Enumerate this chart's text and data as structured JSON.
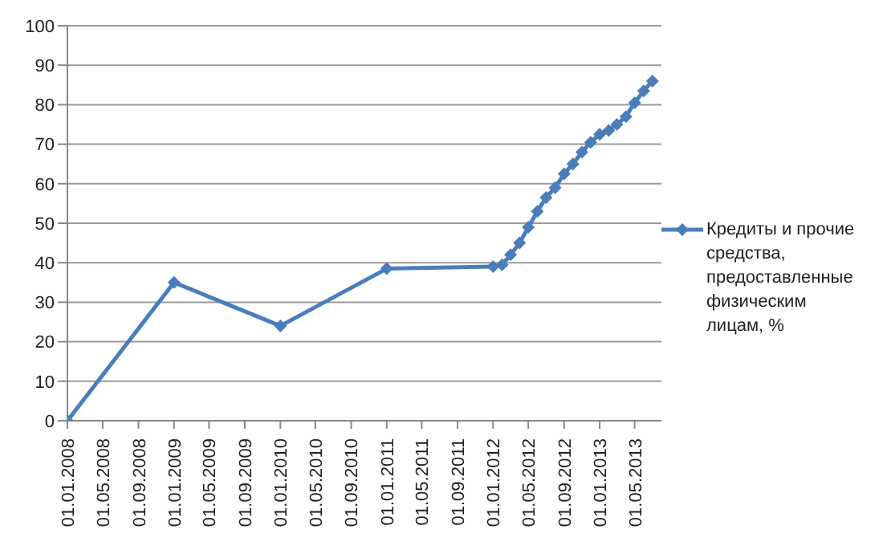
{
  "chart_data": {
    "type": "line",
    "x": [
      "2008-01-01",
      "2009-01-01",
      "2010-01-01",
      "2011-01-01",
      "2012-01-01",
      "2012-02-01",
      "2012-03-01",
      "2012-04-01",
      "2012-05-01",
      "2012-06-01",
      "2012-07-01",
      "2012-08-01",
      "2012-09-01",
      "2012-10-01",
      "2012-11-01",
      "2012-12-01",
      "2013-01-01",
      "2013-02-01",
      "2013-03-01",
      "2013-04-01",
      "2013-05-01",
      "2013-06-01",
      "2013-07-01"
    ],
    "series": [
      {
        "name": "Кредиты  и прочие средства, предоставленные физическим лицам, %",
        "color": "#4a7ebb",
        "values": [
          0,
          35,
          24,
          38.5,
          39,
          39.5,
          42,
          45,
          49,
          53,
          56.5,
          59,
          62.5,
          65,
          68,
          70.5,
          72.5,
          73.5,
          75,
          77,
          80.5,
          83.5,
          86
        ]
      }
    ],
    "xlim": [
      "2008-01-01",
      "2013-08-01"
    ],
    "xticks": [
      {
        "value": "2008-01-01",
        "label": "01.01.2008"
      },
      {
        "value": "2008-05-01",
        "label": "01.05.2008"
      },
      {
        "value": "2008-09-01",
        "label": "01.09.2008"
      },
      {
        "value": "2009-01-01",
        "label": "01.01.2009"
      },
      {
        "value": "2009-05-01",
        "label": "01.05.2009"
      },
      {
        "value": "2009-09-01",
        "label": "01.09.2009"
      },
      {
        "value": "2010-01-01",
        "label": "01.01.2010"
      },
      {
        "value": "2010-05-01",
        "label": "01.05.2010"
      },
      {
        "value": "2010-09-01",
        "label": "01.09.2010"
      },
      {
        "value": "2011-01-01",
        "label": "01.01.2011"
      },
      {
        "value": "2011-05-01",
        "label": "01.05.2011"
      },
      {
        "value": "2011-09-01",
        "label": "01.09.2011"
      },
      {
        "value": "2012-01-01",
        "label": "01.01.2012"
      },
      {
        "value": "2012-05-01",
        "label": "01.05.2012"
      },
      {
        "value": "2012-09-01",
        "label": "01.09.2012"
      },
      {
        "value": "2013-01-01",
        "label": "01.01.2013"
      },
      {
        "value": "2013-05-01",
        "label": "01.05.2013"
      }
    ],
    "ylim": [
      0,
      100
    ],
    "yticks": [
      0,
      10,
      20,
      30,
      40,
      50,
      60,
      70,
      80,
      90,
      100
    ],
    "grid": "y",
    "legend": "right",
    "marker": "diamond",
    "line_style": "solid"
  }
}
